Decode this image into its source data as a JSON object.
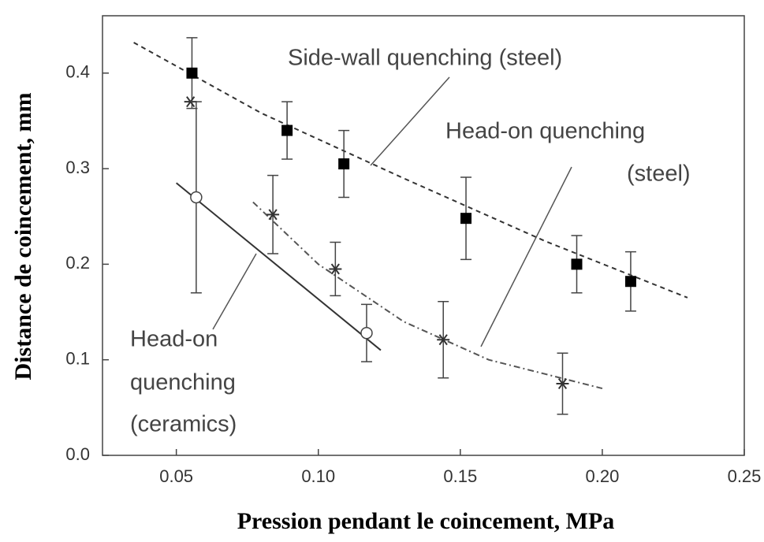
{
  "chart_data": {
    "type": "scatter",
    "x_label": "Pression pendant le coincement, MPa",
    "y_label": "Distance de coincement, mm",
    "xlim": [
      0.024,
      0.25
    ],
    "ylim": [
      0,
      0.46
    ],
    "xticks": [
      0.05,
      {
        "value": 0.1,
        "label": "0.10"
      },
      0.15,
      {
        "value": 0.2,
        "label": "0.20"
      },
      0.25
    ],
    "yticks": [
      {
        "value": 0,
        "label": "0.0"
      },
      0.1,
      0.2,
      0.3,
      0.4
    ],
    "series": [
      {
        "marker": "square",
        "color": "#000000",
        "x": [
          0.0555,
          0.089,
          0.109,
          0.152,
          0.191,
          0.21
        ],
        "values": [
          0.4,
          0.34,
          0.305,
          0.248,
          0.2,
          0.182
        ],
        "errors": [
          0.037,
          0.03,
          0.035,
          0.043,
          0.03,
          0.031
        ]
      },
      {
        "marker": "star",
        "color": "#333333",
        "x": [
          0.055,
          0.084,
          0.106,
          0.144,
          0.186
        ],
        "values": [
          0.37,
          0.252,
          0.195,
          0.121,
          0.075
        ],
        "errors": [
          null,
          0.041,
          0.028,
          0.04,
          0.032
        ]
      },
      {
        "marker": "circle",
        "color": "#444444",
        "x": [
          0.057,
          0.117
        ],
        "values": [
          0.27,
          0.128
        ],
        "errors": [
          0.1,
          0.03
        ]
      }
    ],
    "fits": [
      {
        "style": "dashed",
        "color": "#333333",
        "x": [
          0.035,
          0.08,
          0.13,
          0.18,
          0.23
        ],
        "values": [
          0.432,
          0.358,
          0.29,
          0.224,
          0.165
        ]
      },
      {
        "style": "dashdot",
        "color": "#555555",
        "x": [
          0.077,
          0.1,
          0.13,
          0.16,
          0.2
        ],
        "values": [
          0.265,
          0.2,
          0.14,
          0.1,
          0.07
        ]
      },
      {
        "style": "solid",
        "color": "#333333",
        "x": [
          0.05,
          0.122
        ],
        "values": [
          0.285,
          0.11
        ]
      }
    ],
    "annotations": [
      {
        "lines": [
          "Side-wall quenching (steel)"
        ]
      },
      {
        "lines": [
          "Head-on quenching",
          "(steel)"
        ]
      },
      {
        "lines": [
          "Head-on",
          "quenching",
          "(ceramics)"
        ]
      }
    ]
  }
}
